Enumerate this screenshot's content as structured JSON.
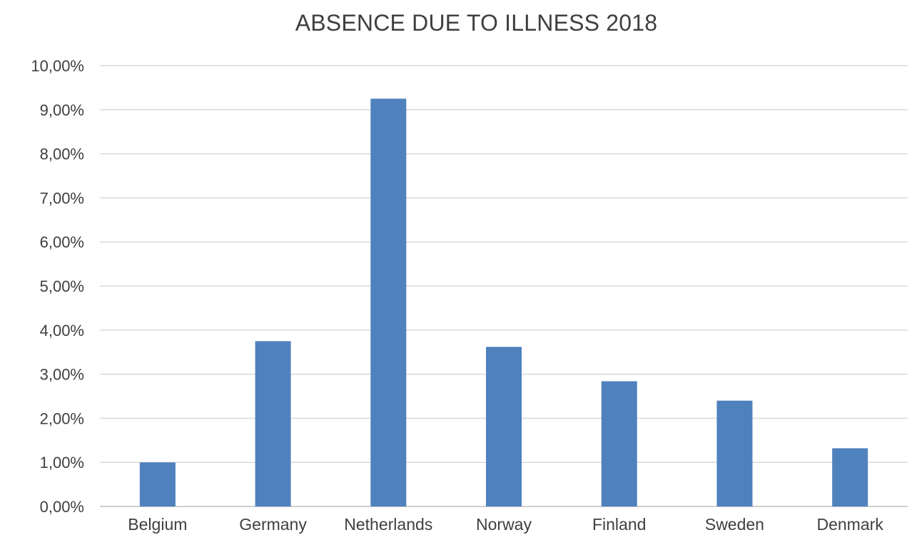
{
  "chart_data": {
    "type": "bar",
    "title": "ABSENCE DUE TO ILLNESS 2018",
    "xlabel": "",
    "ylabel": "",
    "categories": [
      "Belgium",
      "Germany",
      "Netherlands",
      "Norway",
      "Finland",
      "Sweden",
      "Denmark"
    ],
    "series": [
      {
        "values": [
          1.0,
          3.75,
          9.25,
          3.62,
          2.84,
          2.4,
          1.32
        ]
      }
    ],
    "y_ticks": [
      "0,00%",
      "1,00%",
      "2,00%",
      "3,00%",
      "4,00%",
      "5,00%",
      "6,00%",
      "7,00%",
      "8,00%",
      "9,00%",
      "10,00%"
    ],
    "ylim": [
      0,
      10
    ],
    "y_unit": "%",
    "grid": true,
    "legend": "none",
    "bar_color": "#4f81bd",
    "grid_color": "#d9d9d9",
    "text_color": "#3f3f3f"
  }
}
